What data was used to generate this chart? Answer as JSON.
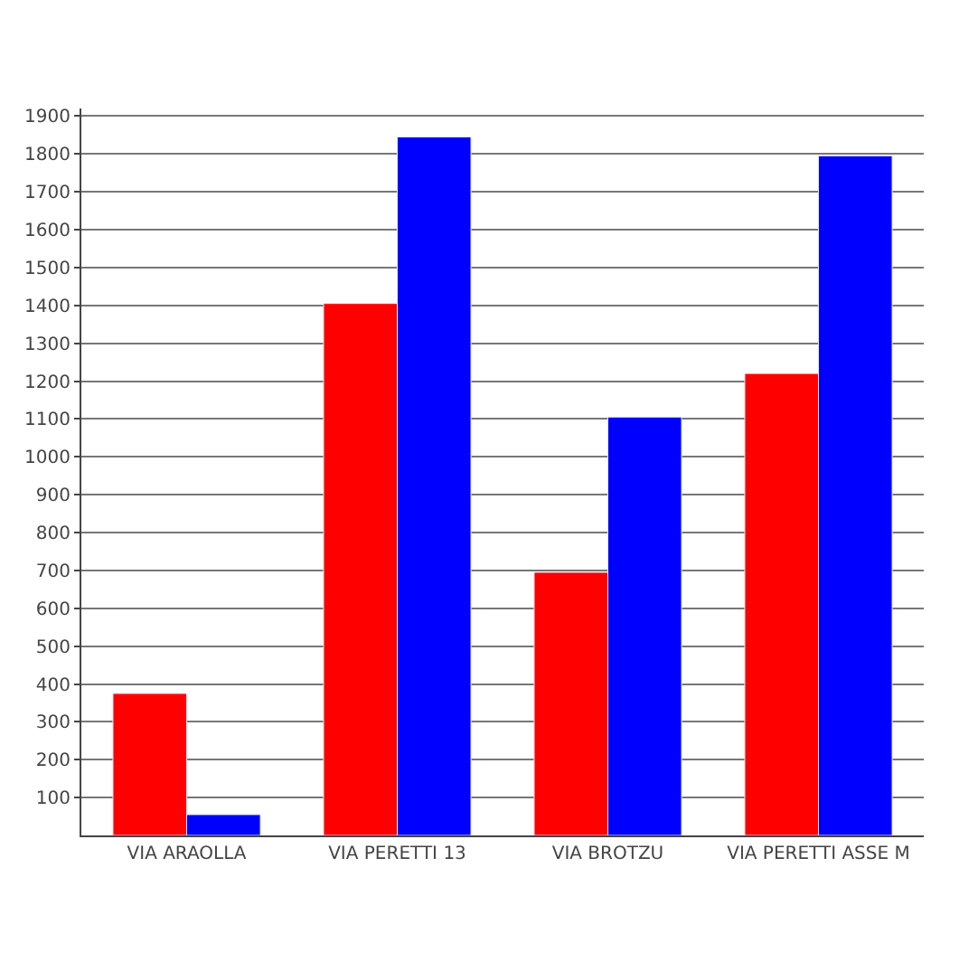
{
  "chart_data": {
    "type": "bar",
    "categories": [
      "VIA ARAOLLA",
      "VIA PERETTI 13",
      "VIA BROTZU",
      "VIA PERETTI ASSE M"
    ],
    "series": [
      {
        "color": "#ff0000",
        "values": [
          375,
          1405,
          695,
          1220
        ]
      },
      {
        "color": "#0000ff",
        "values": [
          55,
          1845,
          1105,
          1795
        ]
      }
    ],
    "ylim": [
      0,
      1920
    ],
    "yticks": [
      100,
      200,
      300,
      400,
      500,
      600,
      700,
      800,
      900,
      1000,
      1100,
      1200,
      1300,
      1400,
      1500,
      1600,
      1700,
      1800,
      1900
    ],
    "grid": "y"
  }
}
